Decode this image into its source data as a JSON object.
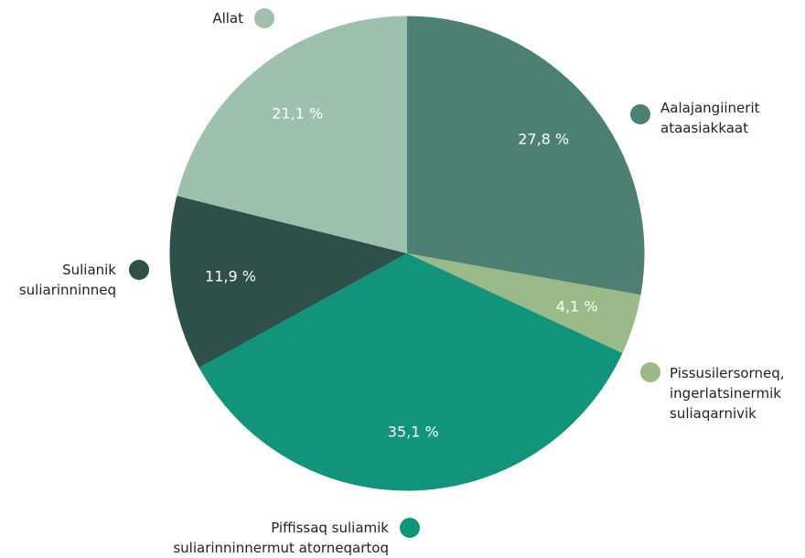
{
  "chart_data": {
    "type": "pie",
    "categories": [
      "Aalajangiinerit\nataasiakkaat",
      "Pissusilersorneq,\ningerlatsinermik\nsuliaqarnivik",
      "Piffissaq suliamik\nsuliarinninnermut atorneqartoq",
      "Sulianik\nsuliarinninneq",
      "Allat"
    ],
    "values": [
      27.8,
      4.1,
      35.1,
      11.9,
      21.1
    ],
    "value_labels": [
      "27,8 %",
      "4,1 %",
      "35,1 %",
      "11,9 %",
      "21,1 %"
    ],
    "colors": [
      "#4e7f74",
      "#9aba8a",
      "#12937b",
      "#2f4f4b",
      "#9dc1ad"
    ]
  }
}
